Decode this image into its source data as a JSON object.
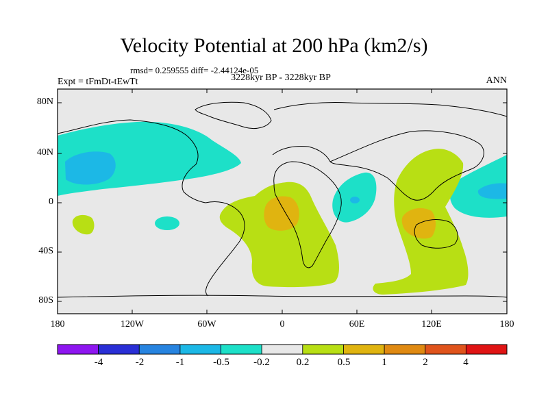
{
  "title": "Velocity Potential at 200 hPa (km2/s)",
  "stats": "rmsd= 0.259555 diff= -2.44124e-05",
  "subtitle": "3228kyr BP - 3228kyr BP",
  "experiment": "Expt = tFmDt-tEwTt",
  "season": "ANN",
  "axes": {
    "y_ticks": [
      "80N",
      "40N",
      "0",
      "40S",
      "80S"
    ],
    "x_ticks": [
      "180",
      "120W",
      "60W",
      "0",
      "60E",
      "120E",
      "180"
    ]
  },
  "colorbar": {
    "labels": [
      "-4",
      "-2",
      "-1",
      "-0.5",
      "-0.2",
      "0.2",
      "0.5",
      "1",
      "2",
      "4"
    ],
    "colors": [
      "#8e16f0",
      "#2a2fd6",
      "#2784e0",
      "#1cb8e6",
      "#1de0c8",
      "#e8e8e8",
      "#b8df14",
      "#e0b410",
      "#e08a12",
      "#e0541c",
      "#e01414"
    ]
  },
  "map_colors": {
    "neg_02": "#1de0c8",
    "neg_05": "#1cb8e6",
    "pos_02": "#b8df14",
    "pos_05": "#e0b410",
    "background": "#e8e8e8"
  }
}
